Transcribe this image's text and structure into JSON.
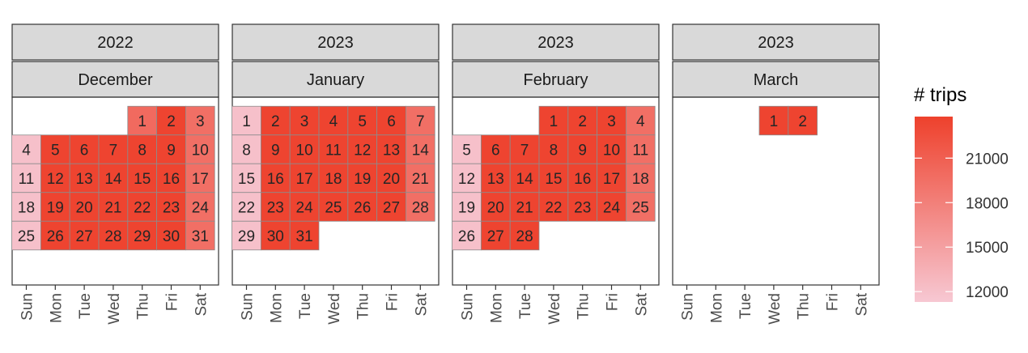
{
  "chart_data": {
    "type": "heatmap",
    "subtype": "calendar",
    "weekdays": [
      "Sun",
      "Mon",
      "Tue",
      "Wed",
      "Thu",
      "Fri",
      "Sat"
    ],
    "panels": [
      {
        "year": "2022",
        "month": "December",
        "first_weekday": 4,
        "days_in_month": 31,
        "values": [
          20000,
          23500,
          19500,
          12000,
          23500,
          23500,
          23500,
          23500,
          23500,
          19500,
          12000,
          23500,
          23500,
          23500,
          23500,
          23500,
          19500,
          12000,
          23500,
          23500,
          23500,
          23500,
          23500,
          19500,
          12000,
          23500,
          23500,
          23500,
          23500,
          23500,
          19500
        ]
      },
      {
        "year": "2023",
        "month": "January",
        "first_weekday": 0,
        "days_in_month": 31,
        "values": [
          12000,
          23500,
          23500,
          23500,
          23500,
          23500,
          19500,
          12000,
          23500,
          23500,
          23500,
          23500,
          23500,
          19500,
          12000,
          23500,
          23500,
          23500,
          23500,
          23500,
          19500,
          12000,
          23500,
          23500,
          23500,
          23500,
          23500,
          19500,
          12000,
          23500,
          23500
        ]
      },
      {
        "year": "2023",
        "month": "February",
        "first_weekday": 3,
        "days_in_month": 28,
        "values": [
          23500,
          23500,
          23500,
          19500,
          12000,
          23500,
          23500,
          23500,
          23500,
          23500,
          19500,
          12000,
          23500,
          23500,
          23500,
          23500,
          23500,
          19500,
          12000,
          23500,
          23500,
          23500,
          23500,
          23500,
          19500,
          12000,
          23500,
          23500
        ]
      },
      {
        "year": "2023",
        "month": "March",
        "first_weekday": 3,
        "days_in_month": 2,
        "values": [
          23500,
          23500
        ]
      }
    ],
    "legend": {
      "title": "# trips",
      "ticks": [
        12000,
        15000,
        18000,
        21000
      ],
      "tick_labels": [
        "12000",
        "15000",
        "18000",
        "21000"
      ],
      "range": [
        11300,
        23800
      ],
      "color_low": "#f7c8d3",
      "color_high": "#ee412c",
      "placement": "right"
    }
  }
}
